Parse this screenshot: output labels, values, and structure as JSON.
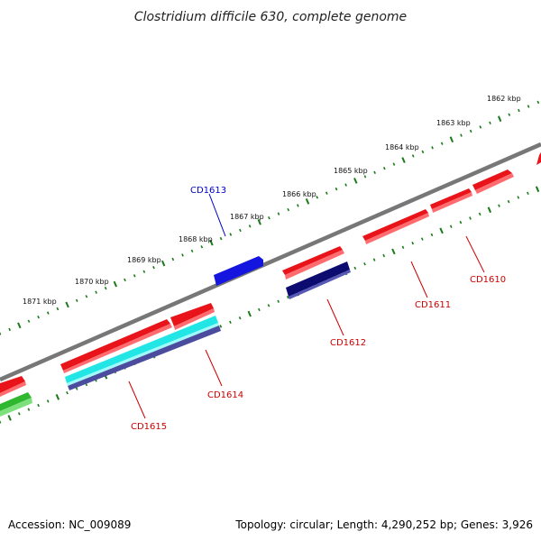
{
  "title": "Clostridium difficile 630, complete genome",
  "accession": "Accession: NC_009089",
  "summary": "Topology: circular; Length: 4,290,252 bp; Genes: 3,926",
  "kbp_ticks": [
    "1862 kbp",
    "1863 kbp",
    "1864 kbp",
    "1865 kbp",
    "1866 kbp",
    "1867 kbp",
    "1868 kbp",
    "1869 kbp",
    "1870 kbp",
    "1871 kbp"
  ],
  "gene_labels": [
    "CD1610",
    "CD1611",
    "CD1612",
    "CD1613",
    "CD1614",
    "CD1615"
  ],
  "colors": {
    "backbone": "#777777",
    "tick": "#1a7a1a",
    "red": "#e8141a",
    "red_light": "#ff6b6e",
    "blue": "#1515e0",
    "navy": "#0b0b70",
    "cyan": "#22e6e6",
    "slate": "#4c4c9e",
    "green": "#2fb82f",
    "label_red": "#cc0000",
    "label_blue": "#0000cc"
  }
}
